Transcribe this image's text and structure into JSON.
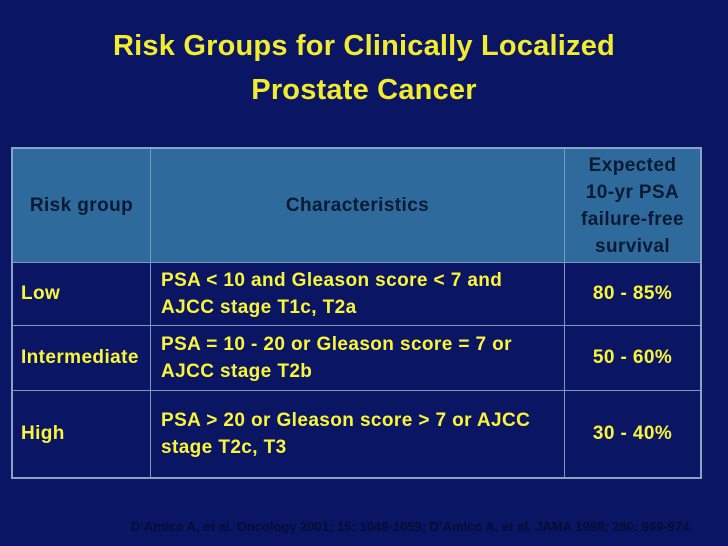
{
  "slide": {
    "title": {
      "line1": "Risk Groups for Clinically Localized",
      "line2": "Prostate Cancer"
    },
    "table": {
      "columns": [
        {
          "label": "Risk group"
        },
        {
          "label": "Characteristics"
        },
        {
          "label": "Expected 10-yr PSA failure-free survival",
          "label_lines": [
            "Expected",
            "10-yr PSA",
            "failure-free",
            "survival"
          ]
        }
      ],
      "rows": [
        {
          "risk_group": "Low",
          "characteristics_lines": [
            "PSA < 10 and Gleason score < 7 and",
            "AJCC stage T1c, T2a"
          ],
          "survival": "80 - 85%"
        },
        {
          "risk_group": "Intermediate",
          "characteristics_lines": [
            "PSA = 10 - 20 or Gleason score = 7 or",
            "AJCC stage T2b"
          ],
          "survival": "50 - 60%"
        },
        {
          "risk_group": "High",
          "characteristics_lines": [
            "PSA > 20 or Gleason score > 7 or AJCC",
            "stage T2c, T3"
          ],
          "survival": "30 - 40%"
        }
      ]
    },
    "citation": "D’Amico A, et al. Oncology 2001; 15: 1049-1059; D’Amico A, et al. JAMA 1998; 280: 969-974.",
    "colors": {
      "background": "#0A1664",
      "header_fill": "#2E6B9C",
      "header_text": "#0A1A33",
      "cell_text_yellow": "#FBF53A",
      "title_yellow": "#F2EC2F",
      "table_border": "#8AA2C4",
      "gridline": "#7E97BC",
      "citation_text": "#030E33"
    }
  }
}
